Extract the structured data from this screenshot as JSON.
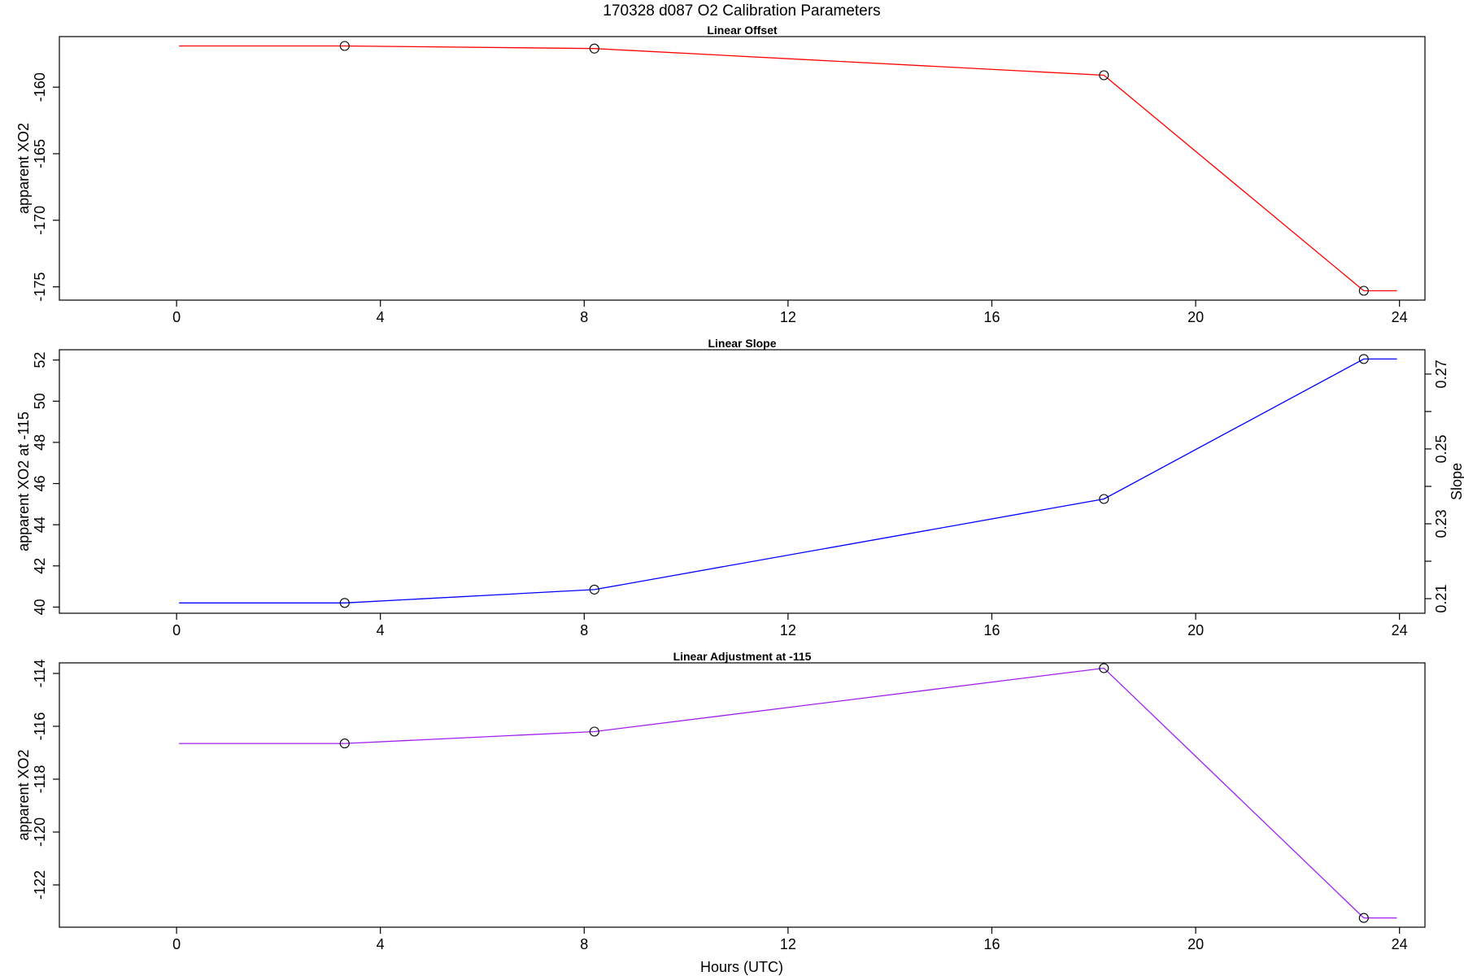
{
  "main_title": "170328   d087   O2 Calibration Parameters",
  "xlabel": "Hours (UTC)",
  "chart_data": [
    {
      "type": "line",
      "title": "Linear Offset",
      "xlabel": "",
      "ylabel": "apparent XO2",
      "xlim": [
        -2.3,
        24.5
      ],
      "ylim": [
        -176.0,
        -156.2
      ],
      "x_ticks": [
        0,
        4,
        8,
        12,
        16,
        20,
        24
      ],
      "y_ticks": [
        -175,
        -170,
        -165,
        -160
      ],
      "color": "#ff0000",
      "line_x": [
        0.05,
        3.3,
        8.2,
        18.2,
        23.3,
        23.95
      ],
      "line_y": [
        -156.9,
        -156.9,
        -157.1,
        -159.1,
        -175.3,
        -175.3
      ],
      "markers_x": [
        3.3,
        8.2,
        18.2,
        23.3
      ],
      "markers_y": [
        -156.9,
        -157.1,
        -159.1,
        -175.3
      ]
    },
    {
      "type": "line",
      "title": "Linear Slope",
      "xlabel": "",
      "ylabel": "apparent XO2 at -115",
      "ylabel_right": "Slope",
      "xlim": [
        -2.3,
        24.5
      ],
      "ylim": [
        39.7,
        52.5
      ],
      "x_ticks": [
        0,
        4,
        8,
        12,
        16,
        20,
        24
      ],
      "y_ticks": [
        40,
        42,
        44,
        46,
        48,
        50,
        52
      ],
      "right_ylim": [
        0.2061,
        0.2765
      ],
      "right_y_ticks": [
        0.21,
        0.23,
        0.25,
        0.27
      ],
      "right_y_minor_ticks": [
        0.22,
        0.24,
        0.26
      ],
      "color": "#0000ff",
      "line_x": [
        0.05,
        3.3,
        8.2,
        18.2,
        23.3,
        23.95
      ],
      "line_y": [
        40.2,
        40.2,
        40.85,
        45.25,
        52.05,
        52.05
      ],
      "markers_x": [
        3.3,
        8.2,
        18.2,
        23.3
      ],
      "markers_y": [
        40.2,
        40.85,
        45.25,
        52.05
      ]
    },
    {
      "type": "line",
      "title": "Linear Adjustment at -115",
      "xlabel": "Hours (UTC)",
      "ylabel": "apparent XO2",
      "xlim": [
        -2.3,
        24.5
      ],
      "ylim": [
        -123.6,
        -113.6
      ],
      "x_ticks": [
        0,
        4,
        8,
        12,
        16,
        20,
        24
      ],
      "y_ticks": [
        -122,
        -120,
        -118,
        -116,
        -114
      ],
      "color": "#a020f0",
      "line_x": [
        0.05,
        3.3,
        8.2,
        18.2,
        23.3,
        23.95
      ],
      "line_y": [
        -116.65,
        -116.65,
        -116.2,
        -113.8,
        -123.25,
        -123.25
      ],
      "markers_x": [
        3.3,
        8.2,
        18.2,
        23.3
      ],
      "markers_y": [
        -116.65,
        -116.2,
        -113.8,
        -123.25
      ]
    }
  ]
}
